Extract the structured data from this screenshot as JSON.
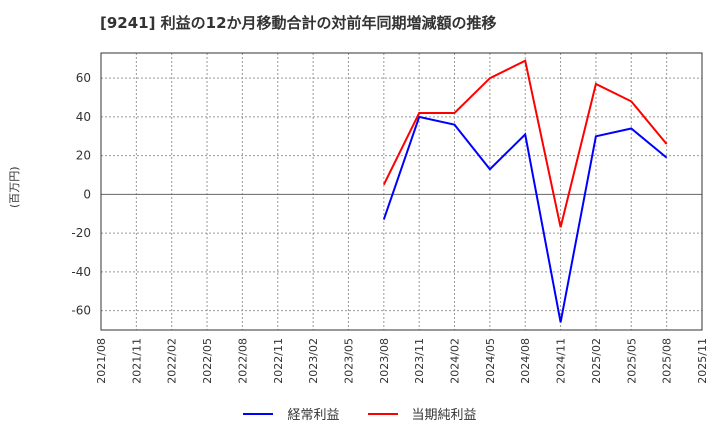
{
  "chart_data": {
    "type": "line",
    "title": "[9241]  利益の12か月移動合計の対前年同期増減額の推移",
    "xlabel": "",
    "ylabel": "(百万円)",
    "ylim": [
      -70,
      73
    ],
    "yticks": [
      60,
      40,
      20,
      0,
      -20,
      -40,
      -60
    ],
    "grid": true,
    "legend_position": "bottom",
    "categories": [
      "2021/08",
      "2021/11",
      "2022/02",
      "2022/05",
      "2022/08",
      "2022/11",
      "2023/02",
      "2023/05",
      "2023/08",
      "2023/11",
      "2024/02",
      "2024/05",
      "2024/08",
      "2024/11",
      "2025/02",
      "2025/05",
      "2025/08",
      "2025/11"
    ],
    "series": [
      {
        "name": "経常利益",
        "color": "#0000ff",
        "values": [
          null,
          null,
          null,
          null,
          null,
          null,
          null,
          null,
          -13,
          40,
          36,
          13,
          31,
          -66,
          30,
          34,
          19,
          null
        ]
      },
      {
        "name": "当期純利益",
        "color": "#ff0000",
        "values": [
          null,
          null,
          null,
          null,
          null,
          null,
          null,
          null,
          5,
          42,
          42,
          60,
          69,
          -17,
          57,
          48,
          26,
          null
        ]
      }
    ]
  }
}
